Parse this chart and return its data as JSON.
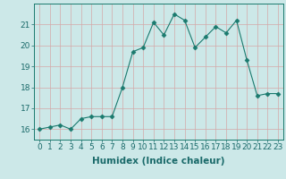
{
  "x": [
    0,
    1,
    2,
    3,
    4,
    5,
    6,
    7,
    8,
    9,
    10,
    11,
    12,
    13,
    14,
    15,
    16,
    17,
    18,
    19,
    20,
    21,
    22,
    23
  ],
  "y": [
    16.0,
    16.1,
    16.2,
    16.0,
    16.5,
    16.6,
    16.6,
    16.6,
    18.0,
    19.7,
    19.9,
    21.1,
    20.5,
    21.5,
    21.2,
    19.9,
    20.4,
    20.9,
    20.6,
    21.2,
    19.3,
    17.6,
    17.7,
    17.7
  ],
  "line_color": "#1a7a6e",
  "marker": "D",
  "marker_size": 2.5,
  "xlabel": "Humidex (Indice chaleur)",
  "xlim": [
    -0.5,
    23.5
  ],
  "ylim": [
    15.5,
    22.0
  ],
  "yticks": [
    16,
    17,
    18,
    19,
    20,
    21
  ],
  "xticks": [
    0,
    1,
    2,
    3,
    4,
    5,
    6,
    7,
    8,
    9,
    10,
    11,
    12,
    13,
    14,
    15,
    16,
    17,
    18,
    19,
    20,
    21,
    22,
    23
  ],
  "bg_color": "#cce8e8",
  "grid_color": "#d4a8a8",
  "xlabel_fontsize": 7.5,
  "tick_fontsize": 6.5
}
